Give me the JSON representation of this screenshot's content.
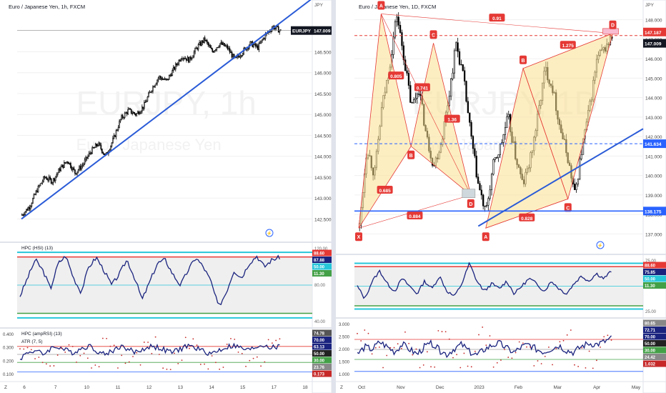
{
  "colors": {
    "up": "#000000",
    "down": "#000000",
    "trend": "#2a5bd7",
    "indicator": "#1a237e",
    "red_line": "#e53935",
    "cyan_line": "#26c6da",
    "green_line": "#43a047",
    "blue_guide": "#2962ff",
    "pattern_fill": "#fbe08f",
    "pattern_stroke": "#e53935",
    "grid": "#f0f0f0"
  },
  "chart_data": [
    {
      "type": "candlestick",
      "title": "Euro / Japanese Yen, 1h, FXCM",
      "watermark": {
        "symbol": "EURJPY, 1h",
        "name": "Euro / Japanese Yen"
      },
      "currency": "JPY",
      "x_ticks": [
        "6",
        "7",
        "10",
        "11",
        "12",
        "13",
        "14",
        "15",
        "17",
        "18"
      ],
      "y_ticks": [
        142.5,
        143.0,
        143.5,
        144.0,
        144.5,
        145.0,
        145.5,
        146.0,
        146.5
      ],
      "ylim": [
        142.2,
        147.5
      ],
      "ohlc_path": [
        142.6,
        142.8,
        143.2,
        143.5,
        143.4,
        143.7,
        143.9,
        143.6,
        143.8,
        144.1,
        144.3,
        144.0,
        144.4,
        144.9,
        145.1,
        145.0,
        145.2,
        145.6,
        145.9,
        145.8,
        146.1,
        146.4,
        146.3,
        146.6,
        146.8,
        146.5,
        146.7,
        146.6,
        146.3,
        146.5,
        146.7,
        146.6,
        146.9,
        147.1,
        147.0
      ],
      "price_labels": [
        {
          "text": "EURJPY",
          "value": "147.009"
        }
      ],
      "trendline": {
        "from": [
          0,
          142.5
        ],
        "to": [
          34,
          147.2
        ]
      },
      "x_scale_label": "Z",
      "panels": [
        {
          "name": "HPC (HSI) (13)",
          "y_ticks": [
            "120.00",
            "80.00",
            "40.00"
          ],
          "levels": [
            {
              "label": "88.60",
              "color": "#e53935"
            },
            {
              "label": "87.88",
              "color": "#1a237e"
            },
            {
              "label": "50.00",
              "color": "#26c6da"
            },
            {
              "label": "11.30",
              "color": "#43a047"
            }
          ],
          "series": [
            35,
            60,
            85,
            70,
            45,
            80,
            90,
            60,
            40,
            75,
            88,
            70,
            50,
            65,
            85,
            60,
            30,
            55,
            80,
            85,
            65,
            50,
            70,
            88,
            75,
            55,
            20,
            40,
            70,
            60,
            80,
            90,
            75,
            85,
            88
          ]
        },
        {
          "name": "HPC (ampRSI) (13)",
          "subname": "ATR (7, 5)",
          "y_ticks": [
            "0.400",
            "0.300",
            "0.200",
            "0.100"
          ],
          "levels": [
            {
              "label": "74.78",
              "color": "#555555"
            },
            {
              "label": "70.00",
              "color": "#1a237e"
            },
            {
              "label": "63.13",
              "color": "#1a237e"
            },
            {
              "label": "50.00",
              "color": "#222222"
            },
            {
              "label": "30.00",
              "color": "#43a047"
            },
            {
              "label": "23.76",
              "color": "#888888"
            },
            {
              "label": "0.173",
              "color": "#c62828"
            }
          ],
          "series": [
            40,
            55,
            60,
            50,
            65,
            70,
            60,
            55,
            65,
            72,
            60,
            50,
            58,
            70,
            65,
            55,
            62,
            70,
            68,
            60,
            55,
            64,
            72,
            66,
            58,
            52,
            60,
            68,
            72,
            65,
            60,
            70,
            74,
            66,
            70
          ]
        }
      ]
    },
    {
      "type": "candlestick",
      "title": "Euro / Japanese Yen, 1D, FXCM",
      "watermark": {
        "symbol": "EURJPY, 1D",
        "name": "Euro / Japanese Yen"
      },
      "currency": "JPY",
      "x_ticks": [
        "Oct",
        "Nov",
        "Dec",
        "2023",
        "Feb",
        "Mar",
        "Apr",
        "May"
      ],
      "y_ticks": [
        137.0,
        138.0,
        139.0,
        140.0,
        141.0,
        142.0,
        143.0,
        144.0,
        145.0,
        146.0,
        147.0,
        148.0
      ],
      "ylim": [
        136.5,
        148.5
      ],
      "ohlc_path": [
        137.4,
        141.5,
        140.0,
        143.5,
        145.5,
        148.3,
        146.0,
        143.5,
        144.5,
        142.0,
        140.5,
        141.7,
        144.0,
        146.8,
        145.0,
        142.0,
        139.5,
        138.0,
        140.5,
        141.5,
        143.0,
        141.0,
        139.5,
        140.8,
        143.0,
        145.5,
        144.5,
        142.5,
        141.0,
        139.0,
        141.5,
        143.5,
        146.0,
        146.5,
        147.1
      ],
      "harmonic_points": [
        {
          "label": "X",
          "value": 137.3
        },
        {
          "label": "A",
          "value": 148.3
        },
        {
          "label": "B",
          "value": 141.5
        },
        {
          "label": "C",
          "value": 146.8
        },
        {
          "label": "D",
          "value": 139.0
        },
        {
          "label": "A",
          "value": 137.3
        },
        {
          "label": "B",
          "value": 145.5
        },
        {
          "label": "C",
          "value": 138.8
        },
        {
          "label": "D",
          "value": 147.3
        }
      ],
      "ratios": [
        "0.805",
        "0.741",
        "0.685",
        "1.36",
        "0.884",
        "0.91",
        "1.275",
        "0.828"
      ],
      "price_labels": [
        {
          "text": "",
          "value": "147.187"
        },
        {
          "text": "",
          "value": "147.009"
        },
        {
          "text": "",
          "value": "141.634"
        },
        {
          "text": "",
          "value": "138.175"
        }
      ],
      "x_scale_label": "Z",
      "panels": [
        {
          "name": "",
          "y_ticks": [
            "75.00",
            "50.00",
            "25.00"
          ],
          "levels": [
            {
              "label": "88.60",
              "color": "#e53935"
            },
            {
              "label": "75.85",
              "color": "#1a237e"
            },
            {
              "label": "50.00",
              "color": "#26c6da"
            },
            {
              "label": "11.30",
              "color": "#43a047"
            }
          ],
          "series": [
            50,
            25,
            60,
            80,
            55,
            40,
            65,
            50,
            35,
            60,
            45,
            70,
            40,
            30,
            55,
            95,
            60,
            40,
            55,
            45,
            60,
            35,
            50,
            65,
            55,
            40,
            60,
            45,
            35,
            55,
            70,
            60,
            75,
            65,
            80
          ]
        },
        {
          "name": "",
          "y_ticks": [
            "3.000",
            "2.500",
            "2.000",
            "1.500",
            "1.000"
          ],
          "levels": [
            {
              "label": "80.65",
              "color": "#888888"
            },
            {
              "label": "72.71",
              "color": "#1a237e"
            },
            {
              "label": "70.00",
              "color": "#1a237e"
            },
            {
              "label": "50.00",
              "color": "#222222"
            },
            {
              "label": "30.00",
              "color": "#43a047"
            },
            {
              "label": "24.42",
              "color": "#888888"
            },
            {
              "label": "1.032",
              "color": "#c62828"
            }
          ],
          "series": [
            40,
            55,
            50,
            65,
            55,
            45,
            60,
            50,
            40,
            55,
            62,
            48,
            40,
            52,
            60,
            45,
            38,
            50,
            58,
            62,
            52,
            44,
            55,
            60,
            50,
            45,
            52,
            58,
            48,
            44,
            56,
            62,
            60,
            65,
            72
          ]
        }
      ]
    }
  ]
}
